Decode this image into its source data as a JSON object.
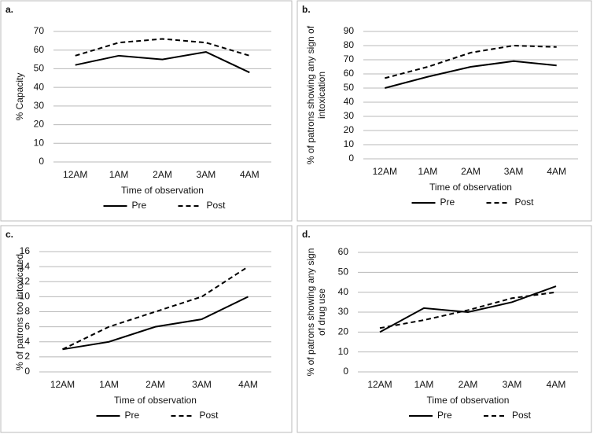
{
  "chart_data": [
    {
      "type": "line",
      "title": "a.",
      "x_label": "Time of observation",
      "y_label": "% Capacity",
      "categories": [
        "12AM",
        "1AM",
        "2AM",
        "3AM",
        "4AM"
      ],
      "series": [
        {
          "name": "Pre",
          "color": "#000000",
          "line_style": "solid",
          "values": [
            52,
            57,
            55,
            59,
            48
          ]
        },
        {
          "name": "Post",
          "color": "#000000",
          "line_style": "dashed",
          "values": [
            57,
            64,
            66,
            64,
            57
          ]
        }
      ],
      "ylim": [
        0,
        70
      ],
      "yticks": [
        0,
        10,
        20,
        30,
        40,
        50,
        60,
        70
      ],
      "grid": true
    },
    {
      "type": "line",
      "title": "b.",
      "x_label": "Time of observation",
      "y_label": "% of patrons showing any sign of intoxication",
      "categories": [
        "12AM",
        "1AM",
        "2AM",
        "3AM",
        "4AM"
      ],
      "series": [
        {
          "name": "Pre",
          "color": "#000000",
          "line_style": "solid",
          "values": [
            50,
            58,
            65,
            69,
            66
          ]
        },
        {
          "name": "Post",
          "color": "#000000",
          "line_style": "dashed",
          "values": [
            57,
            65,
            75,
            80,
            79
          ]
        }
      ],
      "ylim": [
        0,
        90
      ],
      "yticks": [
        0,
        10,
        20,
        30,
        40,
        50,
        60,
        70,
        80,
        90
      ],
      "grid": true
    },
    {
      "type": "line",
      "title": "c.",
      "x_label": "Time of observation",
      "y_label": "% of patrons too intoxicated",
      "categories": [
        "12AM",
        "1AM",
        "2AM",
        "3AM",
        "4AM"
      ],
      "series": [
        {
          "name": "Pre",
          "color": "#000000",
          "line_style": "solid",
          "values": [
            3,
            4,
            6,
            7,
            10
          ]
        },
        {
          "name": "Post",
          "color": "#000000",
          "line_style": "dashed",
          "values": [
            3,
            6,
            8,
            10,
            14
          ]
        }
      ],
      "ylim": [
        0,
        16
      ],
      "yticks": [
        0,
        2,
        4,
        6,
        8,
        10,
        12,
        14,
        16
      ],
      "grid": true
    },
    {
      "type": "line",
      "title": "d.",
      "x_label": "Time of observation",
      "y_label": "% of patrons showing any sign of drug use",
      "categories": [
        "12AM",
        "1AM",
        "2AM",
        "3AM",
        "4AM"
      ],
      "series": [
        {
          "name": "Pre",
          "color": "#000000",
          "line_style": "solid",
          "values": [
            20,
            32,
            30,
            35,
            43
          ]
        },
        {
          "name": "Post",
          "color": "#000000",
          "line_style": "dashed",
          "values": [
            22,
            26,
            31,
            37,
            40
          ]
        }
      ],
      "ylim": [
        0,
        60
      ],
      "yticks": [
        0,
        10,
        20,
        30,
        40,
        50,
        60
      ],
      "grid": true
    }
  ]
}
